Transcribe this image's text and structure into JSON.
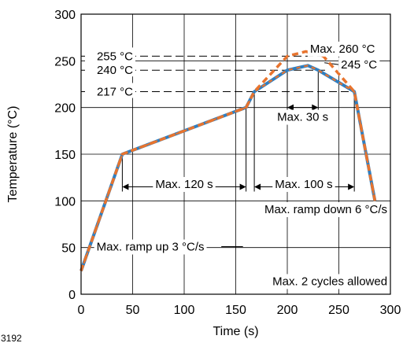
{
  "figure_id": "3192",
  "chart_data": {
    "type": "line",
    "title": "",
    "xlabel": "Time (s)",
    "ylabel": "Temperature (°C)",
    "xlim": [
      0,
      300
    ],
    "ylim": [
      0,
      300
    ],
    "xticks": [
      0,
      50,
      100,
      150,
      200,
      250,
      300
    ],
    "yticks": [
      0,
      50,
      100,
      150,
      200,
      250,
      300
    ],
    "grid": true,
    "colors": {
      "series_blue": "#2f7fc1",
      "series_orange": "#e8742e",
      "grid": "#000000"
    },
    "series": [
      {
        "x": [
          0,
          40,
          160,
          168,
          200,
          220,
          230,
          265,
          285
        ],
        "y": [
          25,
          150,
          200,
          217,
          240,
          245,
          240,
          217,
          100
        ]
      },
      {
        "x": [
          0,
          40,
          160,
          168,
          200,
          218,
          235,
          265,
          285
        ],
        "y": [
          25,
          150,
          200,
          217,
          255,
          260,
          255,
          217,
          100
        ]
      }
    ],
    "reference_lines": [
      {
        "label": "255 °C",
        "y": 255,
        "x_end": 240
      },
      {
        "label": "240 °C",
        "y": 240,
        "x_end": 240
      },
      {
        "label": "217 °C",
        "y": 217,
        "x_end": 262
      }
    ],
    "annotations": [
      {
        "id": "max260",
        "text": "Max. 260 °C"
      },
      {
        "id": "t245",
        "text": "245 °C"
      },
      {
        "id": "max30",
        "text": "Max. 30 s",
        "x_range": [
          200,
          230
        ]
      },
      {
        "id": "max120",
        "text": "Max. 120 s",
        "x_range": [
          40,
          160
        ]
      },
      {
        "id": "max100",
        "text": "Max. 100 s",
        "x_range": [
          168,
          265
        ]
      },
      {
        "id": "rampdown",
        "text": "Max. ramp down 6 °C/s"
      },
      {
        "id": "rampup",
        "text": "Max. ramp up 3 °C/s"
      },
      {
        "id": "cycles",
        "text": "Max. 2 cycles allowed"
      }
    ]
  }
}
